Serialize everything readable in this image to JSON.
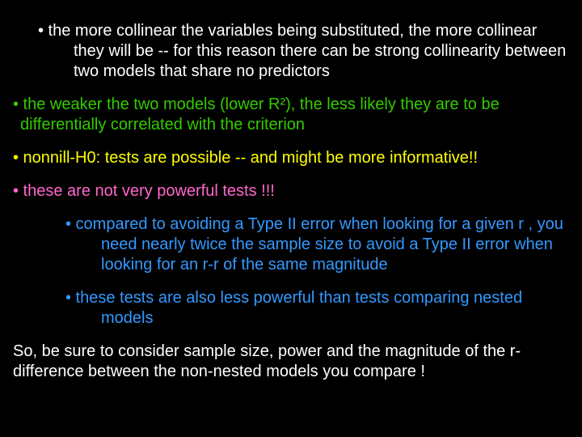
{
  "colors": {
    "background": "#000000",
    "white": "#ffffff",
    "green": "#33cc00",
    "yellow": "#ffff00",
    "pink": "#ff66cc",
    "blue": "#3399ff"
  },
  "fontsize": 20,
  "bullets": {
    "b1": "• the more collinear the variables being substituted, the more collinear they will be -- for this reason there can be strong collinearity between two models that share no predictors",
    "b2": "• the weaker the two models (lower R²), the less likely they are to be differentially correlated with the criterion",
    "b3": "• nonnill-H0: tests are possible -- and might be more informative!!",
    "b4": "• these are not very powerful tests !!!",
    "b5": "• compared to avoiding a Type II error when looking for a given r , you need nearly twice the sample size to avoid a Type II error when looking for an r-r of the same magnitude",
    "b6": "• these tests are also less powerful than tests comparing nested models",
    "closing": "So, be sure to consider sample size, power and the magnitude of the r-difference between the non-nested models you compare !"
  }
}
